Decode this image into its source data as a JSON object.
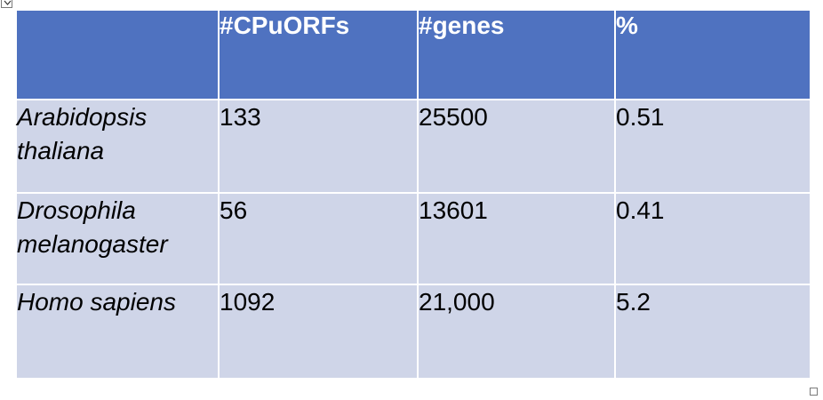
{
  "table": {
    "columns": [
      "",
      "#CPuORFs",
      "#genes",
      "%"
    ],
    "rows": [
      {
        "species": "Arabidopsis thaliana",
        "cpuorfs": "133",
        "genes": "25500",
        "percent": "0.51"
      },
      {
        "species": "Drosophila melanogaster",
        "cpuorfs": "56",
        "genes": "13601",
        "percent": "0.41"
      },
      {
        "species": "Homo sapiens",
        "cpuorfs": "1092",
        "genes": "21,000",
        "percent": "5.2"
      }
    ]
  },
  "colors": {
    "header_bg": "#4f72c0",
    "row_bg": "#cfd5e8",
    "header_text": "#ffffff",
    "body_text": "#000000"
  },
  "icons": {
    "move_handle": "move-handle-icon",
    "resize_handle": "resize-handle-icon"
  }
}
